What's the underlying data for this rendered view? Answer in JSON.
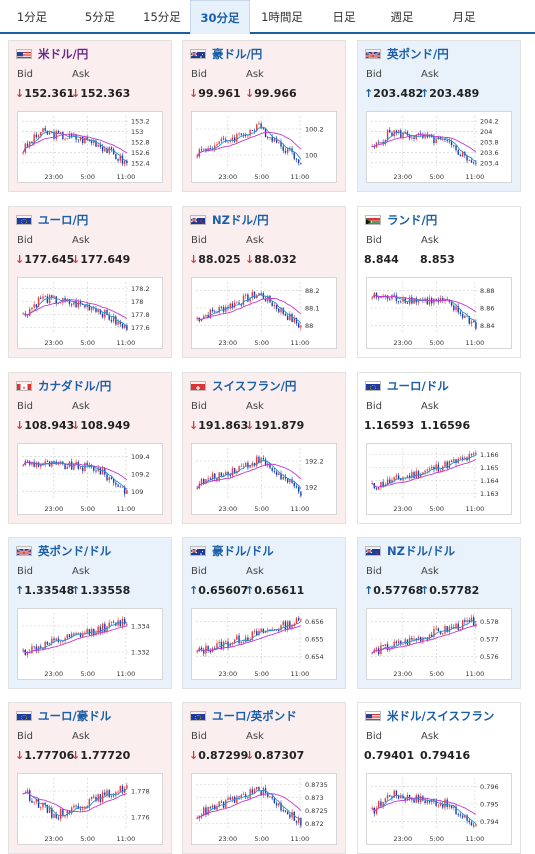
{
  "tabs": [
    "1分足",
    "5分足",
    "15分足",
    "30分足",
    "1時間足",
    "日足",
    "週足",
    "月足"
  ],
  "active_tab": 3,
  "bid_label": "Bid",
  "ask_label": "Ask",
  "x_ticks": [
    "23:00",
    "5:00",
    "11:00"
  ],
  "colors": {
    "up_candle": "#e23c3c",
    "down_candle": "#1a3fb0",
    "ma_fast": "#2a8fd0",
    "ma_slow": "#c23bd0"
  },
  "cards": [
    {
      "name": "米ドル/円",
      "bg": "down",
      "purple": true,
      "flag": "us",
      "dir": "down",
      "bid": "152.361",
      "ask": "152.363",
      "y_ticks": [
        "153.2",
        "153",
        "152.8",
        "152.6",
        "152.4"
      ],
      "trend": "down-end"
    },
    {
      "name": "豪ドル/円",
      "bg": "down",
      "purple": false,
      "flag": "au",
      "dir": "down",
      "bid": "99.961",
      "ask": "99.966",
      "y_ticks": [
        "100.2",
        "100"
      ],
      "trend": "hump-down"
    },
    {
      "name": "英ポンド/円",
      "bg": "up",
      "purple": false,
      "flag": "gb",
      "dir": "up",
      "bid": "203.482",
      "ask": "203.489",
      "y_ticks": [
        "204.2",
        "204",
        "203.8",
        "203.6",
        "203.4"
      ],
      "trend": "down-end"
    },
    {
      "name": "ユーロ/円",
      "bg": "down",
      "purple": false,
      "flag": "eu",
      "dir": "down",
      "bid": "177.645",
      "ask": "177.649",
      "y_ticks": [
        "178.2",
        "178",
        "177.8",
        "177.6"
      ],
      "trend": "down-end"
    },
    {
      "name": "NZドル/円",
      "bg": "down",
      "purple": false,
      "flag": "nz",
      "dir": "down",
      "bid": "88.025",
      "ask": "88.032",
      "y_ticks": [
        "88.2",
        "88.1",
        "88"
      ],
      "trend": "hump-down"
    },
    {
      "name": "ランド/円",
      "bg": "flat",
      "purple": false,
      "flag": "za",
      "dir": "none",
      "bid": "8.844",
      "ask": "8.853",
      "y_ticks": [
        "8.88",
        "8.86",
        "8.84"
      ],
      "trend": "flat-down"
    },
    {
      "name": "カナダドル/円",
      "bg": "down",
      "purple": false,
      "flag": "ca",
      "dir": "down",
      "bid": "108.943",
      "ask": "108.949",
      "y_ticks": [
        "109.4",
        "109.2",
        "109"
      ],
      "trend": "flat-down"
    },
    {
      "name": "スイスフラン/円",
      "bg": "down",
      "purple": false,
      "flag": "ch",
      "dir": "down",
      "bid": "191.863",
      "ask": "191.879",
      "y_ticks": [
        "192.2",
        "192"
      ],
      "trend": "hump-down"
    },
    {
      "name": "ユーロ/ドル",
      "bg": "flat",
      "purple": false,
      "flag": "eu",
      "dir": "none",
      "bid": "1.16593",
      "ask": "1.16596",
      "y_ticks": [
        "1.166",
        "1.165",
        "1.164",
        "1.163"
      ],
      "trend": "up"
    },
    {
      "name": "英ポンド/ドル",
      "bg": "up",
      "purple": false,
      "flag": "gb",
      "dir": "up",
      "bid": "1.33548",
      "ask": "1.33558",
      "y_ticks": [
        "1.334",
        "1.332"
      ],
      "trend": "up"
    },
    {
      "name": "豪ドル/ドル",
      "bg": "up",
      "purple": false,
      "flag": "au",
      "dir": "up",
      "bid": "0.65607",
      "ask": "0.65611",
      "y_ticks": [
        "0.656",
        "0.655",
        "0.654"
      ],
      "trend": "up"
    },
    {
      "name": "NZドル/ドル",
      "bg": "up",
      "purple": false,
      "flag": "nz",
      "dir": "up",
      "bid": "0.57768",
      "ask": "0.57782",
      "y_ticks": [
        "0.578",
        "0.577",
        "0.576"
      ],
      "trend": "up"
    },
    {
      "name": "ユーロ/豪ドル",
      "bg": "down",
      "purple": false,
      "flag": "eu",
      "dir": "down",
      "bid": "1.77706",
      "ask": "1.77720",
      "y_ticks": [
        "1.778",
        "1.776"
      ],
      "trend": "dip-up"
    },
    {
      "name": "ユーロ/英ポンド",
      "bg": "down",
      "purple": false,
      "flag": "eu",
      "dir": "down",
      "bid": "0.87299",
      "ask": "0.87307",
      "y_ticks": [
        "0.8735",
        "0.873",
        "0.8725",
        "0.872"
      ],
      "trend": "hump-down"
    },
    {
      "name": "米ドル/スイスフラン",
      "bg": "flat",
      "purple": false,
      "flag": "us",
      "dir": "none",
      "bid": "0.79401",
      "ask": "0.79416",
      "y_ticks": [
        "0.796",
        "0.795",
        "0.794"
      ],
      "trend": "down-end"
    }
  ]
}
